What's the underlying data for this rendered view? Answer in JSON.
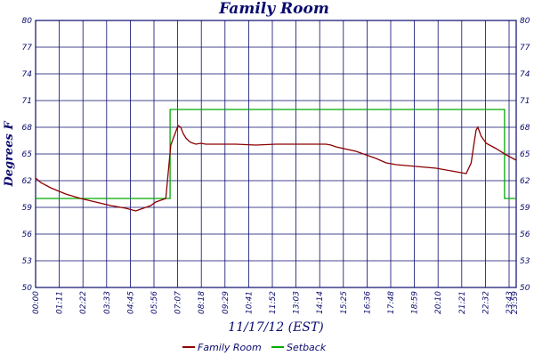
{
  "chart_data": {
    "type": "line",
    "title": "Family Room",
    "xlabel": "11/17/12 (EST)",
    "ylabel": "Degrees F",
    "ylim": [
      50,
      80
    ],
    "yticks": [
      50,
      53,
      56,
      59,
      62,
      65,
      68,
      71,
      74,
      77,
      80
    ],
    "xlim": [
      0,
      1440
    ],
    "xtick_labels": [
      "00:00",
      "01:11",
      "02:22",
      "03:33",
      "04:45",
      "05:56",
      "07:07",
      "08:18",
      "09:29",
      "10:41",
      "11:52",
      "13:03",
      "14:14",
      "15:25",
      "16:36",
      "17:48",
      "18:59",
      "20:10",
      "21:21",
      "22:32",
      "23:43",
      "23:59"
    ],
    "grid": true,
    "legend_position": "bottom-center",
    "series": [
      {
        "name": "Family Room",
        "color": "#8b0000",
        "x": [
          0,
          15,
          45,
          90,
          135,
          180,
          225,
          270,
          300,
          315,
          345,
          360,
          375,
          390,
          405,
          420,
          427,
          435,
          442,
          450,
          458,
          465,
          480,
          495,
          510,
          540,
          600,
          660,
          720,
          780,
          840,
          870,
          885,
          900,
          960,
          1020,
          1050,
          1080,
          1140,
          1200,
          1260,
          1290,
          1305,
          1315,
          1320,
          1325,
          1335,
          1350,
          1380,
          1410,
          1440
        ],
        "y": [
          62.3,
          61.8,
          61.2,
          60.5,
          60.0,
          59.6,
          59.2,
          58.9,
          58.6,
          58.8,
          59.2,
          59.6,
          59.8,
          60.0,
          66.0,
          67.5,
          68.2,
          68.0,
          67.3,
          66.8,
          66.5,
          66.3,
          66.1,
          66.2,
          66.1,
          66.1,
          66.1,
          66.0,
          66.1,
          66.1,
          66.1,
          66.1,
          66.0,
          65.8,
          65.3,
          64.5,
          64.0,
          63.8,
          63.6,
          63.4,
          63.0,
          62.8,
          64.0,
          66.5,
          67.7,
          68.0,
          67.0,
          66.2,
          65.6,
          64.9,
          64.3
        ]
      },
      {
        "name": "Setback",
        "color": "#00aa00",
        "x": [
          0,
          403,
          403,
          1405,
          1405,
          1440
        ],
        "y": [
          60,
          60,
          70,
          70,
          60,
          60
        ]
      }
    ]
  }
}
